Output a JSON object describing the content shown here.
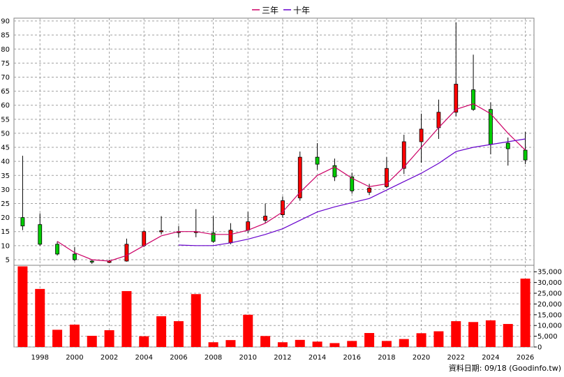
{
  "chart_data": {
    "type": "candlestick",
    "legend": {
      "placement": "top-center",
      "items": [
        {
          "label": "三年",
          "color": "#cc0066"
        },
        {
          "label": "十年",
          "color": "#6600cc"
        }
      ]
    },
    "price_axis": {
      "ylim": [
        3,
        91
      ],
      "ticks": [
        5,
        10,
        15,
        20,
        25,
        30,
        35,
        40,
        45,
        50,
        55,
        60,
        65,
        70,
        75,
        80,
        85,
        90
      ],
      "grid": true
    },
    "volume_axis": {
      "ylim": [
        0,
        38000
      ],
      "ticks": [
        0,
        5000,
        10000,
        15000,
        20000,
        25000,
        30000,
        35000
      ],
      "tick_labels": [
        "0",
        "5,000",
        "10,000",
        "15,000",
        "20,000",
        "25,000",
        "30,000",
        "35,000"
      ]
    },
    "x_axis": {
      "range": [
        1996.5,
        2026.5
      ],
      "ticks": [
        1998,
        2000,
        2002,
        2004,
        2006,
        2008,
        2010,
        2012,
        2014,
        2016,
        2018,
        2020,
        2022,
        2024,
        2026
      ]
    },
    "up_color": "#ff0000",
    "down_color": "#00cc00",
    "volume_color": "#ff0000",
    "candles": [
      {
        "year": 1997,
        "open": 20,
        "high": 42,
        "low": 15.5,
        "close": 17
      },
      {
        "year": 1998,
        "open": 17.5,
        "high": 21.5,
        "low": 10,
        "close": 10.5
      },
      {
        "year": 1999,
        "open": 10.5,
        "high": 11.5,
        "low": 6.5,
        "close": 7
      },
      {
        "year": 2000,
        "open": 7,
        "high": 9.5,
        "low": 4.5,
        "close": 5
      },
      {
        "year": 2001,
        "open": 4.5,
        "high": 5,
        "low": 3.5,
        "close": 4.2
      },
      {
        "year": 2002,
        "open": 4,
        "high": 5,
        "low": 3.8,
        "close": 4.5
      },
      {
        "year": 2003,
        "open": 4.5,
        "high": 12.5,
        "low": 4.3,
        "close": 10.5
      },
      {
        "year": 2004,
        "open": 10,
        "high": 15.5,
        "low": 9.5,
        "close": 15
      },
      {
        "year": 2005,
        "open": 15,
        "high": 20.5,
        "low": 14,
        "close": 15.3
      },
      {
        "year": 2006,
        "open": 15,
        "high": 17,
        "low": 13,
        "close": 15
      },
      {
        "year": 2007,
        "open": 15,
        "high": 23,
        "low": 13,
        "close": 15
      },
      {
        "year": 2008,
        "open": 14.5,
        "high": 20.5,
        "low": 11,
        "close": 11.5
      },
      {
        "year": 2009,
        "open": 11,
        "high": 18,
        "low": 10.5,
        "close": 15.5
      },
      {
        "year": 2010,
        "open": 15.5,
        "high": 22,
        "low": 14.5,
        "close": 18.5
      },
      {
        "year": 2011,
        "open": 19,
        "high": 25,
        "low": 18,
        "close": 20.5
      },
      {
        "year": 2012,
        "open": 21,
        "high": 27.5,
        "low": 20,
        "close": 26
      },
      {
        "year": 2013,
        "open": 27,
        "high": 43.5,
        "low": 26,
        "close": 41.5
      },
      {
        "year": 2014,
        "open": 41.5,
        "high": 46.5,
        "low": 37,
        "close": 39
      },
      {
        "year": 2015,
        "open": 38.5,
        "high": 41,
        "low": 33,
        "close": 34.5
      },
      {
        "year": 2016,
        "open": 34.5,
        "high": 36,
        "low": 28.5,
        "close": 29.5
      },
      {
        "year": 2017,
        "open": 29,
        "high": 32,
        "low": 28,
        "close": 30.5
      },
      {
        "year": 2018,
        "open": 31,
        "high": 41.5,
        "low": 30.5,
        "close": 37.5
      },
      {
        "year": 2019,
        "open": 37.5,
        "high": 49.5,
        "low": 35.5,
        "close": 47
      },
      {
        "year": 2020,
        "open": 47,
        "high": 57,
        "low": 39.5,
        "close": 51.5
      },
      {
        "year": 2021,
        "open": 52,
        "high": 62,
        "low": 48,
        "close": 57.5
      },
      {
        "year": 2022,
        "open": 57.5,
        "high": 89.5,
        "low": 56,
        "close": 67.5
      },
      {
        "year": 2023,
        "open": 65.5,
        "high": 78,
        "low": 58,
        "close": 58.5
      },
      {
        "year": 2024,
        "open": 58.5,
        "high": 61,
        "low": 42.5,
        "close": 46
      },
      {
        "year": 2025,
        "open": 46.5,
        "high": 48.5,
        "low": 38.5,
        "close": 44.5
      },
      {
        "year": 2026,
        "open": 44,
        "high": 50.5,
        "low": 39,
        "close": 40.5
      }
    ],
    "volume": [
      {
        "year": 1997,
        "value": 37500
      },
      {
        "year": 1998,
        "value": 27000
      },
      {
        "year": 1999,
        "value": 8000
      },
      {
        "year": 2000,
        "value": 10400
      },
      {
        "year": 2001,
        "value": 5200
      },
      {
        "year": 2002,
        "value": 7800
      },
      {
        "year": 2003,
        "value": 26000
      },
      {
        "year": 2004,
        "value": 5000
      },
      {
        "year": 2005,
        "value": 14300
      },
      {
        "year": 2006,
        "value": 12000
      },
      {
        "year": 2007,
        "value": 24600
      },
      {
        "year": 2008,
        "value": 2200
      },
      {
        "year": 2009,
        "value": 3200
      },
      {
        "year": 2010,
        "value": 15000
      },
      {
        "year": 2011,
        "value": 5100
      },
      {
        "year": 2012,
        "value": 2200
      },
      {
        "year": 2013,
        "value": 3300
      },
      {
        "year": 2014,
        "value": 2500
      },
      {
        "year": 2015,
        "value": 1800
      },
      {
        "year": 2016,
        "value": 2800
      },
      {
        "year": 2017,
        "value": 6500
      },
      {
        "year": 2018,
        "value": 2800
      },
      {
        "year": 2019,
        "value": 3700
      },
      {
        "year": 2020,
        "value": 6400
      },
      {
        "year": 2021,
        "value": 7300
      },
      {
        "year": 2022,
        "value": 12000
      },
      {
        "year": 2023,
        "value": 11600
      },
      {
        "year": 2024,
        "value": 12400
      },
      {
        "year": 2025,
        "value": 10700
      },
      {
        "year": 2026,
        "value": 31800
      }
    ],
    "ma3": [
      {
        "year": 1999,
        "value": 11.5
      },
      {
        "year": 2000,
        "value": 7.5
      },
      {
        "year": 2001,
        "value": 5
      },
      {
        "year": 2002,
        "value": 4.5
      },
      {
        "year": 2003,
        "value": 6.5
      },
      {
        "year": 2004,
        "value": 10
      },
      {
        "year": 2005,
        "value": 13.5
      },
      {
        "year": 2006,
        "value": 15
      },
      {
        "year": 2007,
        "value": 15
      },
      {
        "year": 2008,
        "value": 14
      },
      {
        "year": 2009,
        "value": 14
      },
      {
        "year": 2010,
        "value": 15.5
      },
      {
        "year": 2011,
        "value": 18
      },
      {
        "year": 2012,
        "value": 22
      },
      {
        "year": 2013,
        "value": 29
      },
      {
        "year": 2014,
        "value": 35
      },
      {
        "year": 2015,
        "value": 38
      },
      {
        "year": 2016,
        "value": 34
      },
      {
        "year": 2017,
        "value": 31
      },
      {
        "year": 2018,
        "value": 32
      },
      {
        "year": 2019,
        "value": 38
      },
      {
        "year": 2020,
        "value": 45
      },
      {
        "year": 2021,
        "value": 52
      },
      {
        "year": 2022,
        "value": 58.5
      },
      {
        "year": 2023,
        "value": 60.5
      },
      {
        "year": 2024,
        "value": 57
      },
      {
        "year": 2025,
        "value": 50
      },
      {
        "year": 2026,
        "value": 44
      }
    ],
    "ma10": [
      {
        "year": 2006,
        "value": 10.2
      },
      {
        "year": 2007,
        "value": 10
      },
      {
        "year": 2008,
        "value": 10
      },
      {
        "year": 2009,
        "value": 11
      },
      {
        "year": 2010,
        "value": 12.3
      },
      {
        "year": 2011,
        "value": 14
      },
      {
        "year": 2012,
        "value": 16
      },
      {
        "year": 2013,
        "value": 19
      },
      {
        "year": 2014,
        "value": 22
      },
      {
        "year": 2015,
        "value": 23.8
      },
      {
        "year": 2016,
        "value": 25.3
      },
      {
        "year": 2017,
        "value": 26.8
      },
      {
        "year": 2018,
        "value": 29.8
      },
      {
        "year": 2019,
        "value": 32.8
      },
      {
        "year": 2020,
        "value": 35.8
      },
      {
        "year": 2021,
        "value": 39.3
      },
      {
        "year": 2022,
        "value": 43.5
      },
      {
        "year": 2023,
        "value": 45
      },
      {
        "year": 2024,
        "value": 46
      },
      {
        "year": 2025,
        "value": 47
      },
      {
        "year": 2026,
        "value": 48
      }
    ]
  },
  "source_note": "資料日期: 09/18   (Goodinfo.tw)"
}
